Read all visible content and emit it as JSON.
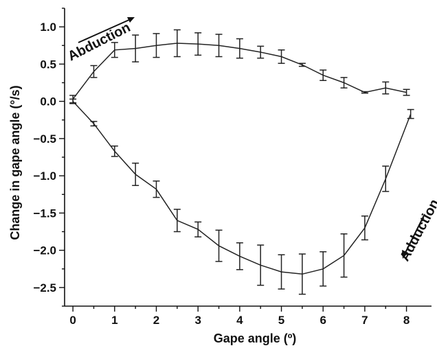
{
  "chart_data": {
    "type": "line",
    "title": "",
    "xlabel": "Gape angle (º)",
    "ylabel": "Change in gape angle (°/s)",
    "xlim": [
      -0.2,
      8.6
    ],
    "ylim": [
      -2.75,
      1.25
    ],
    "xticks": [
      0,
      1,
      2,
      3,
      4,
      5,
      6,
      7,
      8
    ],
    "yticks": [
      1.0,
      0.5,
      0.0,
      -0.5,
      -1.0,
      -1.5,
      -2.0,
      -2.5
    ],
    "ytick_labels": [
      "1.0",
      "0.5",
      "0.0",
      "−0.5",
      "−1.0",
      "−1.5",
      "−2.0",
      "−2.5"
    ],
    "grid": false,
    "series": [
      {
        "name": "",
        "x": [
          0,
          0.5,
          1,
          1.5,
          2,
          2.5,
          3,
          3.5,
          4,
          4.5,
          5,
          5.5,
          6,
          6.5,
          7,
          7.5,
          8
        ],
        "y": [
          0.03,
          0.4,
          0.69,
          0.71,
          0.75,
          0.78,
          0.77,
          0.75,
          0.71,
          0.66,
          0.6,
          0.49,
          0.35,
          0.25,
          0.12,
          0.18,
          0.12
        ],
        "err": [
          0.05,
          0.08,
          0.1,
          0.18,
          0.16,
          0.18,
          0.15,
          0.15,
          0.13,
          0.08,
          0.09,
          0.02,
          0.07,
          0.07,
          0.01,
          0.08,
          0.04
        ]
      },
      {
        "name": "",
        "x": [
          0,
          0.5,
          1,
          1.5,
          2,
          2.5,
          3,
          3.5,
          4,
          4.5,
          5,
          5.5,
          6,
          6.5,
          7,
          7.5,
          8.1
        ],
        "y": [
          0.0,
          -0.3,
          -0.67,
          -0.98,
          -1.18,
          -1.6,
          -1.72,
          -1.94,
          -2.08,
          -2.2,
          -2.29,
          -2.32,
          -2.25,
          -2.07,
          -1.7,
          -1.04,
          -0.17
        ],
        "err": [
          0.03,
          0.03,
          0.07,
          0.15,
          0.11,
          0.15,
          0.1,
          0.21,
          0.18,
          0.27,
          0.23,
          0.27,
          0.23,
          0.29,
          0.16,
          0.17,
          0.06
        ]
      }
    ],
    "annotations": [
      {
        "text": "Abduction",
        "label": "Abduction"
      },
      {
        "text": "Adduction",
        "label": "Adduction"
      }
    ]
  }
}
